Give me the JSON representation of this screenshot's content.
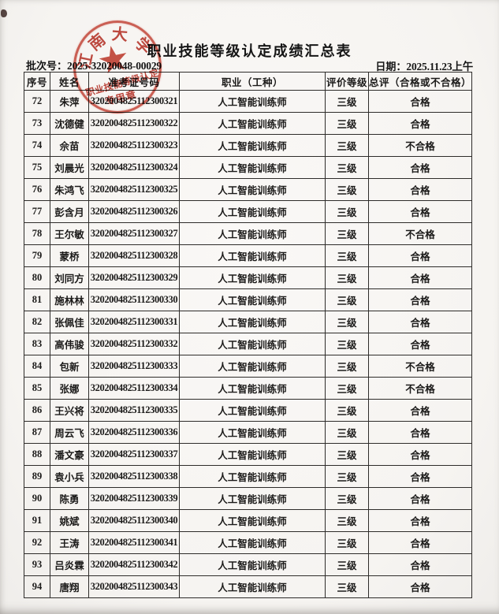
{
  "page": {
    "title": "职业技能等级认定成绩汇总表",
    "batch_label": "批次号：",
    "batch_no": "2025-32020048-00029",
    "date_label": "日期：",
    "date_value": "2025.11.23上午"
  },
  "stamp": {
    "ring_chars": [
      "江",
      "南",
      "大",
      "学"
    ],
    "star_icon": "★",
    "line1": "职业技能等级认定",
    "line2": "专用章",
    "color": "#c2321f"
  },
  "table": {
    "headers": [
      "序号",
      "姓名",
      "准考证号码",
      "职业（工种）",
      "评价等级",
      "总评（合格或不合格）"
    ],
    "rows": [
      [
        "72",
        "朱萍",
        "3202004825112300321",
        "人工智能训练师",
        "三级",
        "合格"
      ],
      [
        "73",
        "沈德健",
        "3202004825112300322",
        "人工智能训练师",
        "三级",
        "合格"
      ],
      [
        "74",
        "佘苗",
        "3202004825112300323",
        "人工智能训练师",
        "三级",
        "不合格"
      ],
      [
        "75",
        "刘晨光",
        "3202004825112300324",
        "人工智能训练师",
        "三级",
        "合格"
      ],
      [
        "76",
        "朱鸿飞",
        "3202004825112300325",
        "人工智能训练师",
        "三级",
        "合格"
      ],
      [
        "77",
        "彭含月",
        "3202004825112300326",
        "人工智能训练师",
        "三级",
        "合格"
      ],
      [
        "78",
        "王尔敏",
        "3202004825112300327",
        "人工智能训练师",
        "三级",
        "不合格"
      ],
      [
        "79",
        "蒙桥",
        "3202004825112300328",
        "人工智能训练师",
        "三级",
        "合格"
      ],
      [
        "80",
        "刘同方",
        "3202004825112300329",
        "人工智能训练师",
        "三级",
        "合格"
      ],
      [
        "81",
        "施林林",
        "3202004825112300330",
        "人工智能训练师",
        "三级",
        "合格"
      ],
      [
        "82",
        "张佩佳",
        "3202004825112300331",
        "人工智能训练师",
        "三级",
        "合格"
      ],
      [
        "83",
        "高伟骏",
        "3202004825112300332",
        "人工智能训练师",
        "三级",
        "合格"
      ],
      [
        "84",
        "包新",
        "3202004825112300333",
        "人工智能训练师",
        "三级",
        "不合格"
      ],
      [
        "85",
        "张娜",
        "3202004825112300334",
        "人工智能训练师",
        "三级",
        "不合格"
      ],
      [
        "86",
        "王兴将",
        "3202004825112300335",
        "人工智能训练师",
        "三级",
        "合格"
      ],
      [
        "87",
        "周云飞",
        "3202004825112300336",
        "人工智能训练师",
        "三级",
        "合格"
      ],
      [
        "88",
        "潘文豪",
        "3202004825112300337",
        "人工智能训练师",
        "三级",
        "合格"
      ],
      [
        "89",
        "袁小兵",
        "3202004825112300338",
        "人工智能训练师",
        "三级",
        "合格"
      ],
      [
        "90",
        "陈勇",
        "3202004825112300339",
        "人工智能训练师",
        "三级",
        "合格"
      ],
      [
        "91",
        "姚斌",
        "3202004825112300340",
        "人工智能训练师",
        "三级",
        "合格"
      ],
      [
        "92",
        "王涛",
        "3202004825112300341",
        "人工智能训练师",
        "三级",
        "合格"
      ],
      [
        "93",
        "吕炎霖",
        "3202004825112300342",
        "人工智能训练师",
        "三级",
        "合格"
      ],
      [
        "94",
        "唐翔",
        "3202004825112300343",
        "人工智能训练师",
        "三级",
        "合格"
      ]
    ]
  }
}
